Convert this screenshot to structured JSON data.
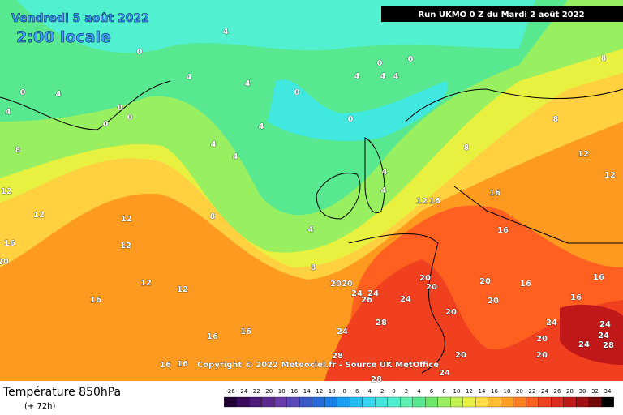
{
  "header": {
    "date": "Vendredi 5 août 2022",
    "time": "2:00 locale",
    "run": "Run UKMO 0 Z du Mardi 2 août 2022"
  },
  "copyright": "Copyright © 2022 Meteociel.fr - Source UK MetOffice",
  "footer": {
    "title": "Température 850hPa",
    "lead": "(+ 72h)"
  },
  "scale": {
    "ticks": [
      -26,
      -24,
      -22,
      -20,
      -18,
      -16,
      -14,
      -12,
      -10,
      -8,
      -6,
      -4,
      -2,
      0,
      2,
      4,
      6,
      8,
      10,
      12,
      14,
      16,
      18,
      20,
      22,
      24,
      26,
      28,
      30,
      32,
      34
    ],
    "colors": [
      "#1e0033",
      "#3a0a5a",
      "#4e1a78",
      "#5e2a90",
      "#6a3aa8",
      "#5a4ab8",
      "#3a5ac8",
      "#2a6ad8",
      "#1a80e8",
      "#1aa0f0",
      "#20c0f0",
      "#30d8f0",
      "#40e8e0",
      "#50f0d0",
      "#60f0b0",
      "#58e890",
      "#70e870",
      "#98f060",
      "#c0f050",
      "#e8f040",
      "#ffe040",
      "#ffc030",
      "#ffa020",
      "#ff8020",
      "#ff6020",
      "#f04020",
      "#e02820",
      "#c01818",
      "#a01010",
      "#700808",
      "#000000"
    ]
  },
  "contours": [
    0,
    0,
    0,
    0,
    0,
    0,
    0,
    0,
    0,
    4,
    4,
    4,
    4,
    4,
    4,
    4,
    4,
    4,
    4,
    4,
    4,
    4,
    4,
    8,
    8,
    8,
    8,
    8,
    8,
    12,
    12,
    12,
    12,
    12,
    12,
    12,
    12,
    12,
    16,
    16,
    16,
    16,
    16,
    16,
    16,
    16,
    16,
    16,
    16,
    16,
    20,
    20,
    20,
    20,
    20,
    20,
    20,
    20,
    20,
    20,
    20,
    24,
    24,
    24,
    24,
    24,
    24,
    24,
    24,
    24,
    26,
    28,
    28,
    28,
    28
  ]
}
